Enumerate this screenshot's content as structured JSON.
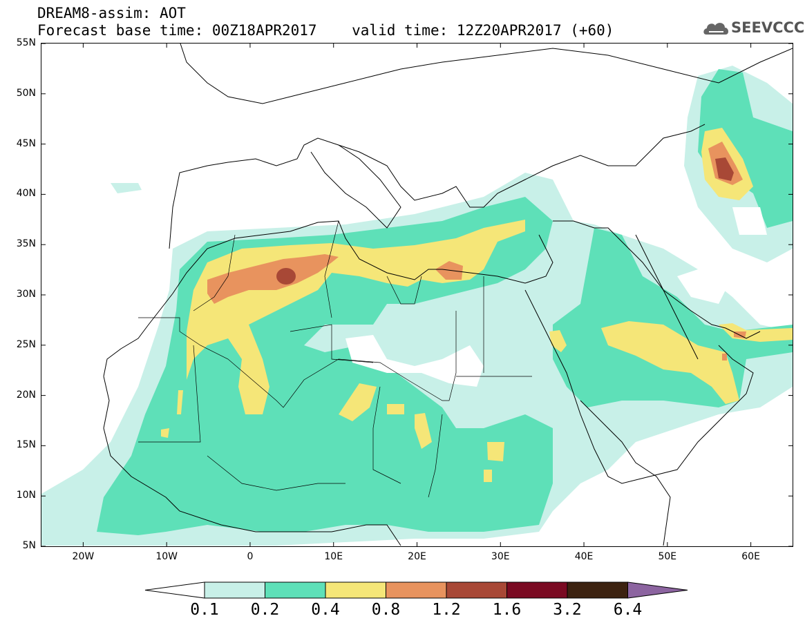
{
  "header": {
    "model_line": "DREAM8-assim: AOT",
    "forecast_line": "Forecast base time: 00Z18APR2017    valid time: 12Z20APR2017 (+60)"
  },
  "logo": {
    "text": "SEEVCCC",
    "icon": "cloud-logo-icon"
  },
  "map": {
    "lon_range": [
      -25,
      65
    ],
    "lat_range": [
      5,
      55
    ],
    "lat_ticks": [
      "55N",
      "50N",
      "45N",
      "40N",
      "35N",
      "30N",
      "25N",
      "20N",
      "15N",
      "10N",
      "5N"
    ],
    "lon_ticks": [
      "20W",
      "10W",
      "0",
      "10E",
      "20E",
      "30E",
      "40E",
      "50E",
      "60E"
    ]
  },
  "colorbar": {
    "labels": [
      "0.1",
      "0.2",
      "0.4",
      "0.8",
      "1.2",
      "1.6",
      "3.2",
      "6.4"
    ],
    "colors": [
      "#c8f0e8",
      "#5ee0b8",
      "#f5e678",
      "#e8935e",
      "#a84836",
      "#7a0a22",
      "#3c2210",
      "#8c64a0"
    ],
    "under_color": "#ffffff"
  },
  "colors": {
    "background": "#ffffff",
    "coastline": "#000000"
  }
}
